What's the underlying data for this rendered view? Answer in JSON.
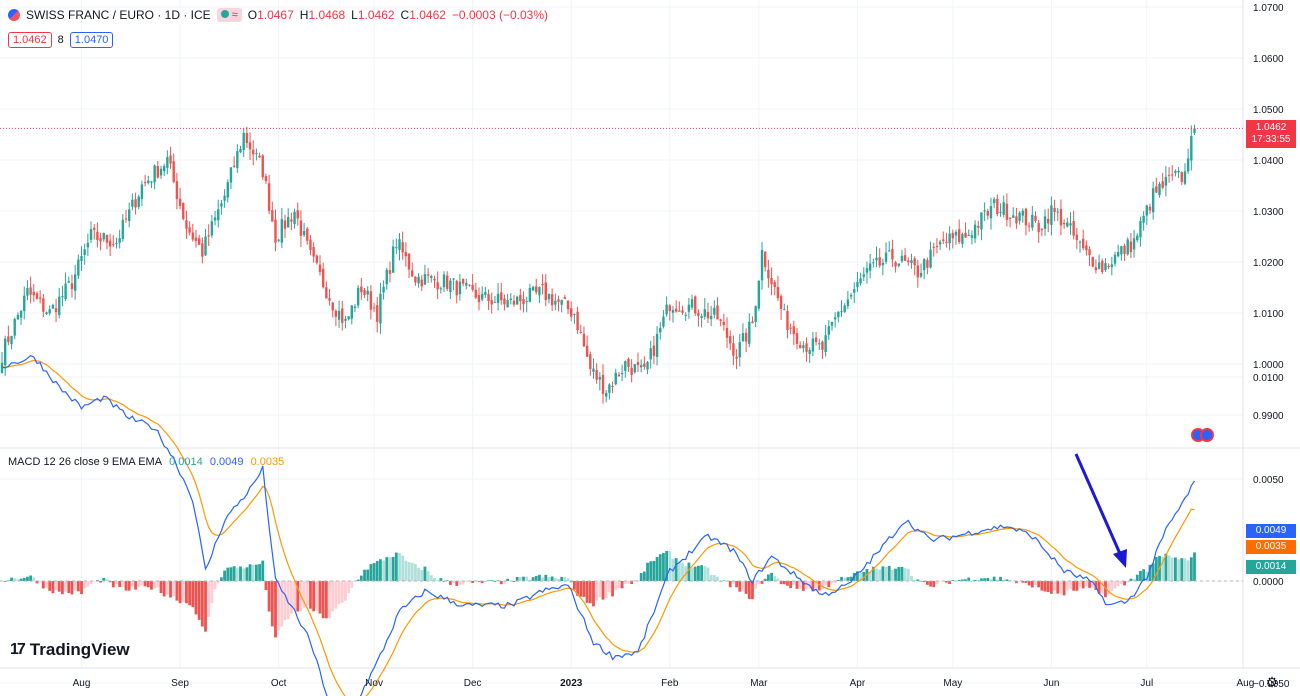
{
  "header": {
    "symbol": "SWISS FRANC / EURO · 1D · ICE",
    "badge_label": "≈",
    "ohlc": [
      {
        "key": "O",
        "value": "1.0467"
      },
      {
        "key": "H",
        "value": "1.0468"
      },
      {
        "key": "L",
        "value": "1.0462"
      },
      {
        "key": "C",
        "value": "1.0462"
      }
    ],
    "change": "−0.0003 (−0.03%)",
    "bid": "1.0462",
    "spread": "8",
    "ask": "1.0470"
  },
  "last_price": {
    "price": "1.0462",
    "countdown": "17:33:55"
  },
  "macd_legend": {
    "title": "MACD 12 26 close 9 EMA EMA",
    "histogram": "0.0014",
    "macd": "0.0049",
    "signal": "0.0035"
  },
  "macd_tags": {
    "macd": "0.0049",
    "signal": "0.0035",
    "histogram": "0.0014"
  },
  "logo_text": "TradingView",
  "colors": {
    "up": "#26a69a",
    "down": "#ef5350",
    "macd_line": "#2962ff",
    "signal_line": "#ff9800",
    "hist_up_strong": "#26a69a",
    "hist_up_weak": "#b2dfdb",
    "hist_down_strong": "#ef5350",
    "hist_down_weak": "#ffcdd2",
    "arrow": "#1a1ad6",
    "grid": "#f0f3fa"
  },
  "chart_data": [
    {
      "type": "candlestick",
      "title": "SWISS FRANC / EURO · 1D · ICE",
      "ylim": [
        0.985,
        1.07
      ],
      "y_ticks": [
        "1.0700",
        "1.0600",
        "1.0500",
        "1.0400",
        "1.0300",
        "1.0200",
        "1.0100",
        "1.0000",
        "0.9900"
      ],
      "y_tick_values": [
        1.07,
        1.06,
        1.05,
        1.04,
        1.03,
        1.02,
        1.01,
        1.0,
        0.99
      ],
      "x_ticks": [
        "Aug",
        "Sep",
        "Oct",
        "Nov",
        "Dec",
        "2023",
        "Feb",
        "Mar",
        "Apr",
        "May",
        "Jun",
        "Jul",
        "Aug"
      ],
      "close_anchors": [
        [
          0,
          1.002
        ],
        [
          8,
          1.014
        ],
        [
          15,
          1.01
        ],
        [
          22,
          1.016
        ],
        [
          28,
          1.025
        ],
        [
          36,
          1.024
        ],
        [
          44,
          1.035
        ],
        [
          52,
          1.04
        ],
        [
          58,
          1.027
        ],
        [
          63,
          1.022
        ],
        [
          70,
          1.033
        ],
        [
          76,
          1.045
        ],
        [
          82,
          1.038
        ],
        [
          86,
          1.025
        ],
        [
          92,
          1.03
        ],
        [
          97,
          1.021
        ],
        [
          104,
          1.012
        ],
        [
          108,
          1.008
        ],
        [
          113,
          1.015
        ],
        [
          118,
          1.01
        ],
        [
          124,
          1.024
        ],
        [
          130,
          1.017
        ],
        [
          140,
          1.016
        ],
        [
          150,
          1.013
        ],
        [
          160,
          1.012
        ],
        [
          170,
          1.014
        ],
        [
          180,
          1.01
        ],
        [
          185,
          0.999
        ],
        [
          190,
          0.995
        ],
        [
          196,
          1.0
        ],
        [
          202,
          0.998
        ],
        [
          210,
          1.012
        ],
        [
          218,
          1.011
        ],
        [
          225,
          1.009
        ],
        [
          231,
          1.002
        ],
        [
          236,
          1.008
        ],
        [
          239,
          1.022
        ],
        [
          246,
          1.009
        ],
        [
          252,
          1.004
        ],
        [
          258,
          1.003
        ],
        [
          263,
          1.01
        ],
        [
          272,
          1.018
        ],
        [
          280,
          1.021
        ],
        [
          288,
          1.018
        ],
        [
          296,
          1.024
        ],
        [
          303,
          1.025
        ],
        [
          312,
          1.031
        ],
        [
          320,
          1.029
        ],
        [
          326,
          1.027
        ],
        [
          330,
          1.03
        ],
        [
          334,
          1.028
        ],
        [
          340,
          1.022
        ],
        [
          346,
          1.019
        ],
        [
          352,
          1.022
        ],
        [
          356,
          1.024
        ],
        [
          362,
          1.033
        ],
        [
          367,
          1.036
        ],
        [
          372,
          1.037
        ],
        [
          374,
          1.046
        ]
      ],
      "last_price": 1.0462
    },
    {
      "type": "macd",
      "title": "MACD 12 26 close 9 EMA EMA",
      "ylim": [
        -0.007,
        0.012
      ],
      "y_ticks": [
        "0.0100",
        "0.0050",
        "0.0000",
        "−0.0050"
      ],
      "y_tick_values": [
        0.01,
        0.005,
        0.0,
        -0.005
      ],
      "macd_anchors": [
        [
          0,
          0.0105
        ],
        [
          10,
          0.011
        ],
        [
          18,
          0.0095
        ],
        [
          25,
          0.0085
        ],
        [
          32,
          0.009
        ],
        [
          40,
          0.008
        ],
        [
          48,
          0.0075
        ],
        [
          54,
          0.006
        ],
        [
          60,
          0.004
        ],
        [
          64,
          0.0005
        ],
        [
          70,
          0.003
        ],
        [
          78,
          0.0045
        ],
        [
          82,
          0.0055
        ],
        [
          86,
          0.0
        ],
        [
          92,
          -0.0015
        ],
        [
          97,
          -0.003
        ],
        [
          103,
          -0.006
        ],
        [
          108,
          -0.0067
        ],
        [
          113,
          -0.0055
        ],
        [
          118,
          -0.004
        ],
        [
          125,
          -0.0015
        ],
        [
          133,
          -0.0005
        ],
        [
          145,
          -0.0012
        ],
        [
          160,
          -0.0012
        ],
        [
          170,
          -0.0005
        ],
        [
          178,
          -0.0002
        ],
        [
          186,
          -0.003
        ],
        [
          192,
          -0.0037
        ],
        [
          200,
          -0.0035
        ],
        [
          210,
          0.0005
        ],
        [
          222,
          0.0022
        ],
        [
          230,
          0.0015
        ],
        [
          236,
          0.0
        ],
        [
          242,
          0.0012
        ],
        [
          250,
          0.0002
        ],
        [
          258,
          -0.0007
        ],
        [
          266,
          -0.0002
        ],
        [
          276,
          0.0015
        ],
        [
          284,
          0.003
        ],
        [
          292,
          0.002
        ],
        [
          300,
          0.0022
        ],
        [
          308,
          0.0025
        ],
        [
          316,
          0.0027
        ],
        [
          324,
          0.0022
        ],
        [
          334,
          0.0005
        ],
        [
          342,
          0.0
        ],
        [
          348,
          -0.0012
        ],
        [
          354,
          -0.001
        ],
        [
          360,
          0.0002
        ],
        [
          366,
          0.0025
        ],
        [
          372,
          0.004
        ],
        [
          375,
          0.0049
        ]
      ],
      "macd_last": 0.0049,
      "signal_last": 0.0035,
      "histogram_last": 0.0014
    }
  ]
}
